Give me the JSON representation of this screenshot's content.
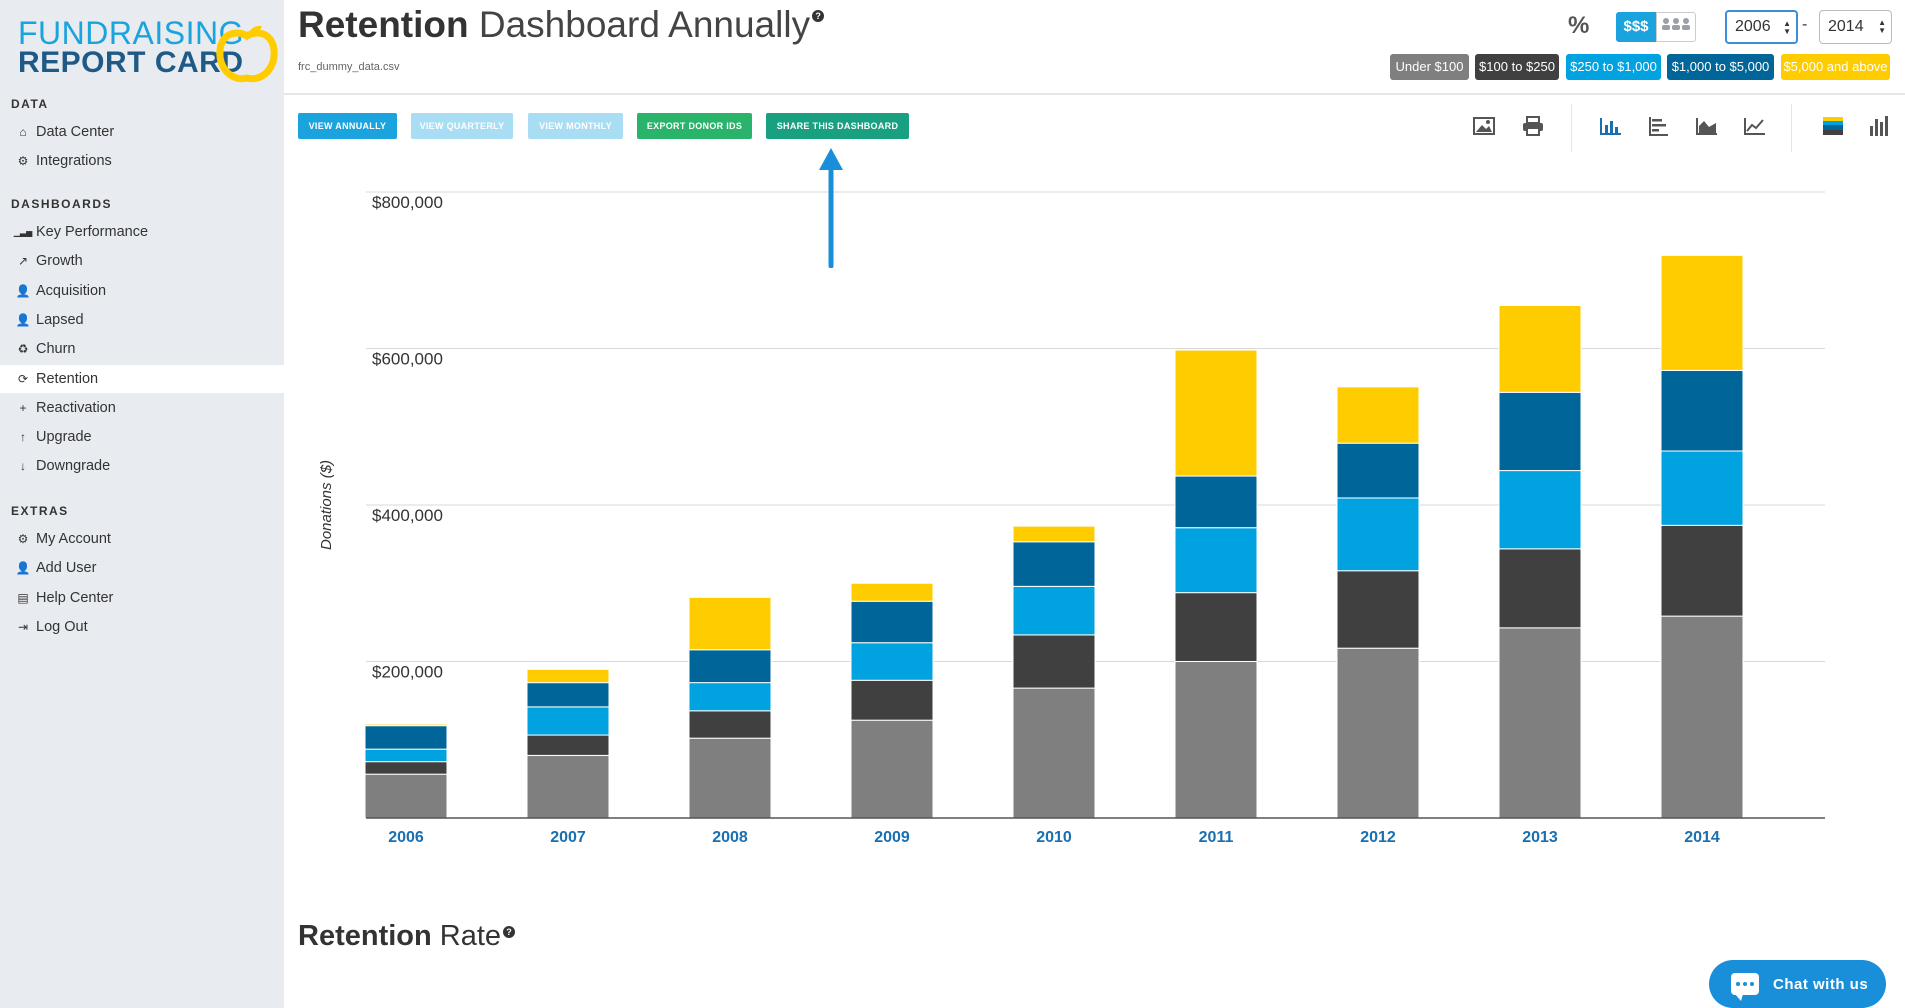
{
  "logo": {
    "line1": "FUNDRAISING",
    "line2": "REPORT CARD"
  },
  "sidebar": {
    "sections": [
      {
        "heading": "DATA",
        "items": [
          {
            "label": "Data Center",
            "icon": "home-icon"
          },
          {
            "label": "Integrations",
            "icon": "bicycle-icon"
          }
        ]
      },
      {
        "heading": "DASHBOARDS",
        "items": [
          {
            "label": "Key Performance",
            "icon": "signal-bars-icon"
          },
          {
            "label": "Growth",
            "icon": "line-chart-icon"
          },
          {
            "label": "Acquisition",
            "icon": "user-plus-icon"
          },
          {
            "label": "Lapsed",
            "icon": "user-times-icon"
          },
          {
            "label": "Churn",
            "icon": "recycle-icon"
          },
          {
            "label": "Retention",
            "icon": "refresh-icon",
            "active": true
          },
          {
            "label": "Reactivation",
            "icon": "plus-icon"
          },
          {
            "label": "Upgrade",
            "icon": "level-up-icon"
          },
          {
            "label": "Downgrade",
            "icon": "level-down-icon"
          }
        ]
      },
      {
        "heading": "EXTRAS",
        "items": [
          {
            "label": "My Account",
            "icon": "gear-icon"
          },
          {
            "label": "Add User",
            "icon": "user-plus-icon"
          },
          {
            "label": "Help Center",
            "icon": "book-icon"
          },
          {
            "label": "Log Out",
            "icon": "sign-out-icon"
          }
        ]
      }
    ]
  },
  "header": {
    "title_bold": "Retention",
    "title_thin": " Dashboard Annually",
    "help": "?",
    "filename": "frc_dummy_data.csv",
    "percent_label": "%",
    "dollar_toggle": "$$$",
    "year_from": "2006",
    "year_to": "2014",
    "year_dash": "-",
    "legend": [
      {
        "label": "Under $100",
        "color": "#7f7f7f"
      },
      {
        "label": "$100 to $250",
        "color": "#404040"
      },
      {
        "label": "$250 to $1,000",
        "color": "#00a3e0"
      },
      {
        "label": "$1,000 to $5,000",
        "color": "#006699"
      },
      {
        "label": "$5,000 and above",
        "color": "#ffcc00"
      }
    ]
  },
  "toolbar": {
    "view_annually": "VIEW ANNUALLY",
    "view_quarterly": "VIEW QUARTERLY",
    "view_monthly": "VIEW MONTHLY",
    "export_donor_ids": "EXPORT DONOR IDS",
    "share_dashboard": "SHARE THIS DASHBOARD"
  },
  "chart_data": {
    "type": "bar",
    "stacked": true,
    "ylabel": "Donations ($)",
    "ylim": [
      0,
      800000
    ],
    "y_ticks": [
      {
        "value": 200000,
        "label": "$200,000"
      },
      {
        "value": 400000,
        "label": "$400,000"
      },
      {
        "value": 600000,
        "label": "$600,000"
      },
      {
        "value": 800000,
        "label": "$800,000"
      }
    ],
    "categories": [
      "2006",
      "2007",
      "2008",
      "2009",
      "2010",
      "2011",
      "2012",
      "2013",
      "2014"
    ],
    "series": [
      {
        "name": "Under $100",
        "color": "#7f7f7f",
        "values": [
          56000,
          80000,
          102000,
          125000,
          166000,
          200000,
          217000,
          243000,
          258000
        ]
      },
      {
        "name": "$100 to $250",
        "color": "#404040",
        "values": [
          16000,
          26000,
          35000,
          51000,
          68000,
          88000,
          99000,
          101000,
          116000
        ]
      },
      {
        "name": "$250 to $1,000",
        "color": "#00a3e0",
        "values": [
          16000,
          36000,
          36000,
          48000,
          62000,
          83000,
          93000,
          100000,
          95000
        ]
      },
      {
        "name": "$1,000 to $5,000",
        "color": "#006699",
        "values": [
          30000,
          31000,
          42000,
          53000,
          57000,
          66000,
          70000,
          100000,
          103000
        ]
      },
      {
        "name": "$5,000 and above",
        "color": "#ffcc00",
        "values": [
          2000,
          17000,
          67000,
          23000,
          20000,
          161000,
          72000,
          111000,
          147000
        ]
      }
    ]
  },
  "section2": {
    "title_bold": "Retention",
    "title_thin": " Rate",
    "help": "?"
  },
  "chat": {
    "label": "Chat with us"
  }
}
